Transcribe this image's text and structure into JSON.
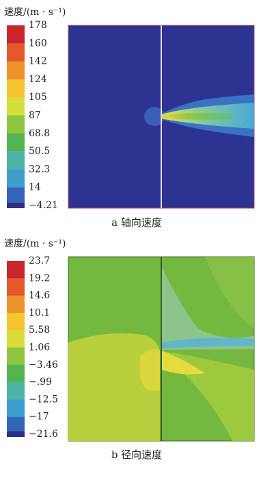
{
  "panels": [
    {
      "title": "速度/(m · s⁻¹)",
      "legend": [
        "178",
        "160",
        "142",
        "124",
        "105",
        "87",
        "68.8",
        "50.5",
        "32.3",
        "14",
        "−4.21"
      ],
      "caption": "a 轴向速度"
    },
    {
      "title": "速度/(m · s⁻¹)",
      "legend": [
        "23.7",
        "19.2",
        "14.6",
        "10.1",
        "5.58",
        "1.06",
        "−3.46",
        "−.99",
        "−12.5",
        "−17",
        "−21.6"
      ],
      "caption": "b 径向速度"
    }
  ]
}
